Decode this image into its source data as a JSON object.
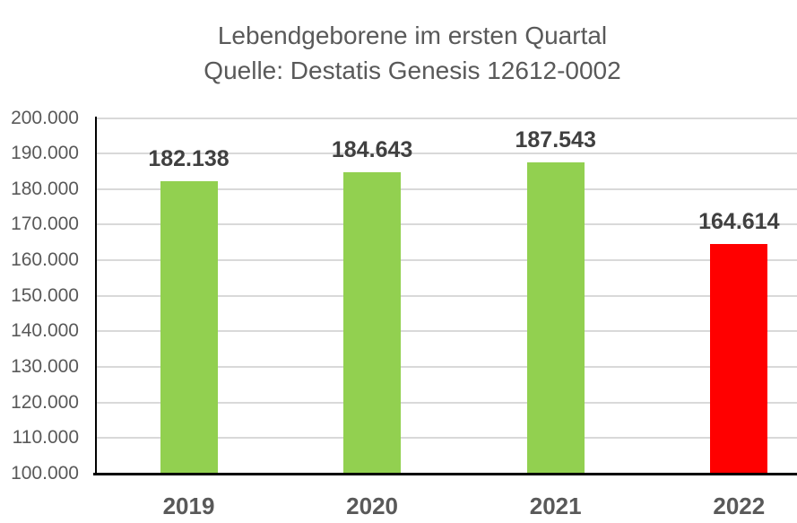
{
  "chart_data": {
    "type": "bar",
    "title": "Lebendgeborene im ersten Quartal",
    "subtitle": "Quelle: Destatis Genesis 12612-0002",
    "categories": [
      "2019",
      "2020",
      "2021",
      "2022"
    ],
    "values": [
      182138,
      184643,
      187543,
      164614
    ],
    "data_labels": [
      "182.138",
      "184.643",
      "187.543",
      "164.614"
    ],
    "bar_colors": [
      "#92D050",
      "#92D050",
      "#92D050",
      "#FF0000"
    ],
    "series": [
      {
        "name": "Lebendgeborene",
        "values": [
          182138,
          184643,
          187543,
          164614
        ]
      }
    ],
    "xlabel": "",
    "ylabel": "",
    "ylim": [
      100000,
      200000
    ],
    "ytick_step": 10000,
    "yticks": [
      {
        "value": 200000,
        "label": "200.000"
      },
      {
        "value": 190000,
        "label": "190.000"
      },
      {
        "value": 180000,
        "label": "180.000"
      },
      {
        "value": 170000,
        "label": "170.000"
      },
      {
        "value": 160000,
        "label": "160.000"
      },
      {
        "value": 150000,
        "label": "150.000"
      },
      {
        "value": 140000,
        "label": "140.000"
      },
      {
        "value": 130000,
        "label": "130.000"
      },
      {
        "value": 120000,
        "label": "120.000"
      },
      {
        "value": 110000,
        "label": "110.000"
      },
      {
        "value": 100000,
        "label": "100.000"
      }
    ],
    "grid": true,
    "legend_position": "none",
    "colors": {
      "green_bar": "#92D050",
      "red_bar": "#FF0000",
      "title_text": "#595959",
      "axis_text": "#595959",
      "data_label_text": "#404040",
      "gridline": "#D9D9D9",
      "axis_line": "#000000"
    }
  }
}
